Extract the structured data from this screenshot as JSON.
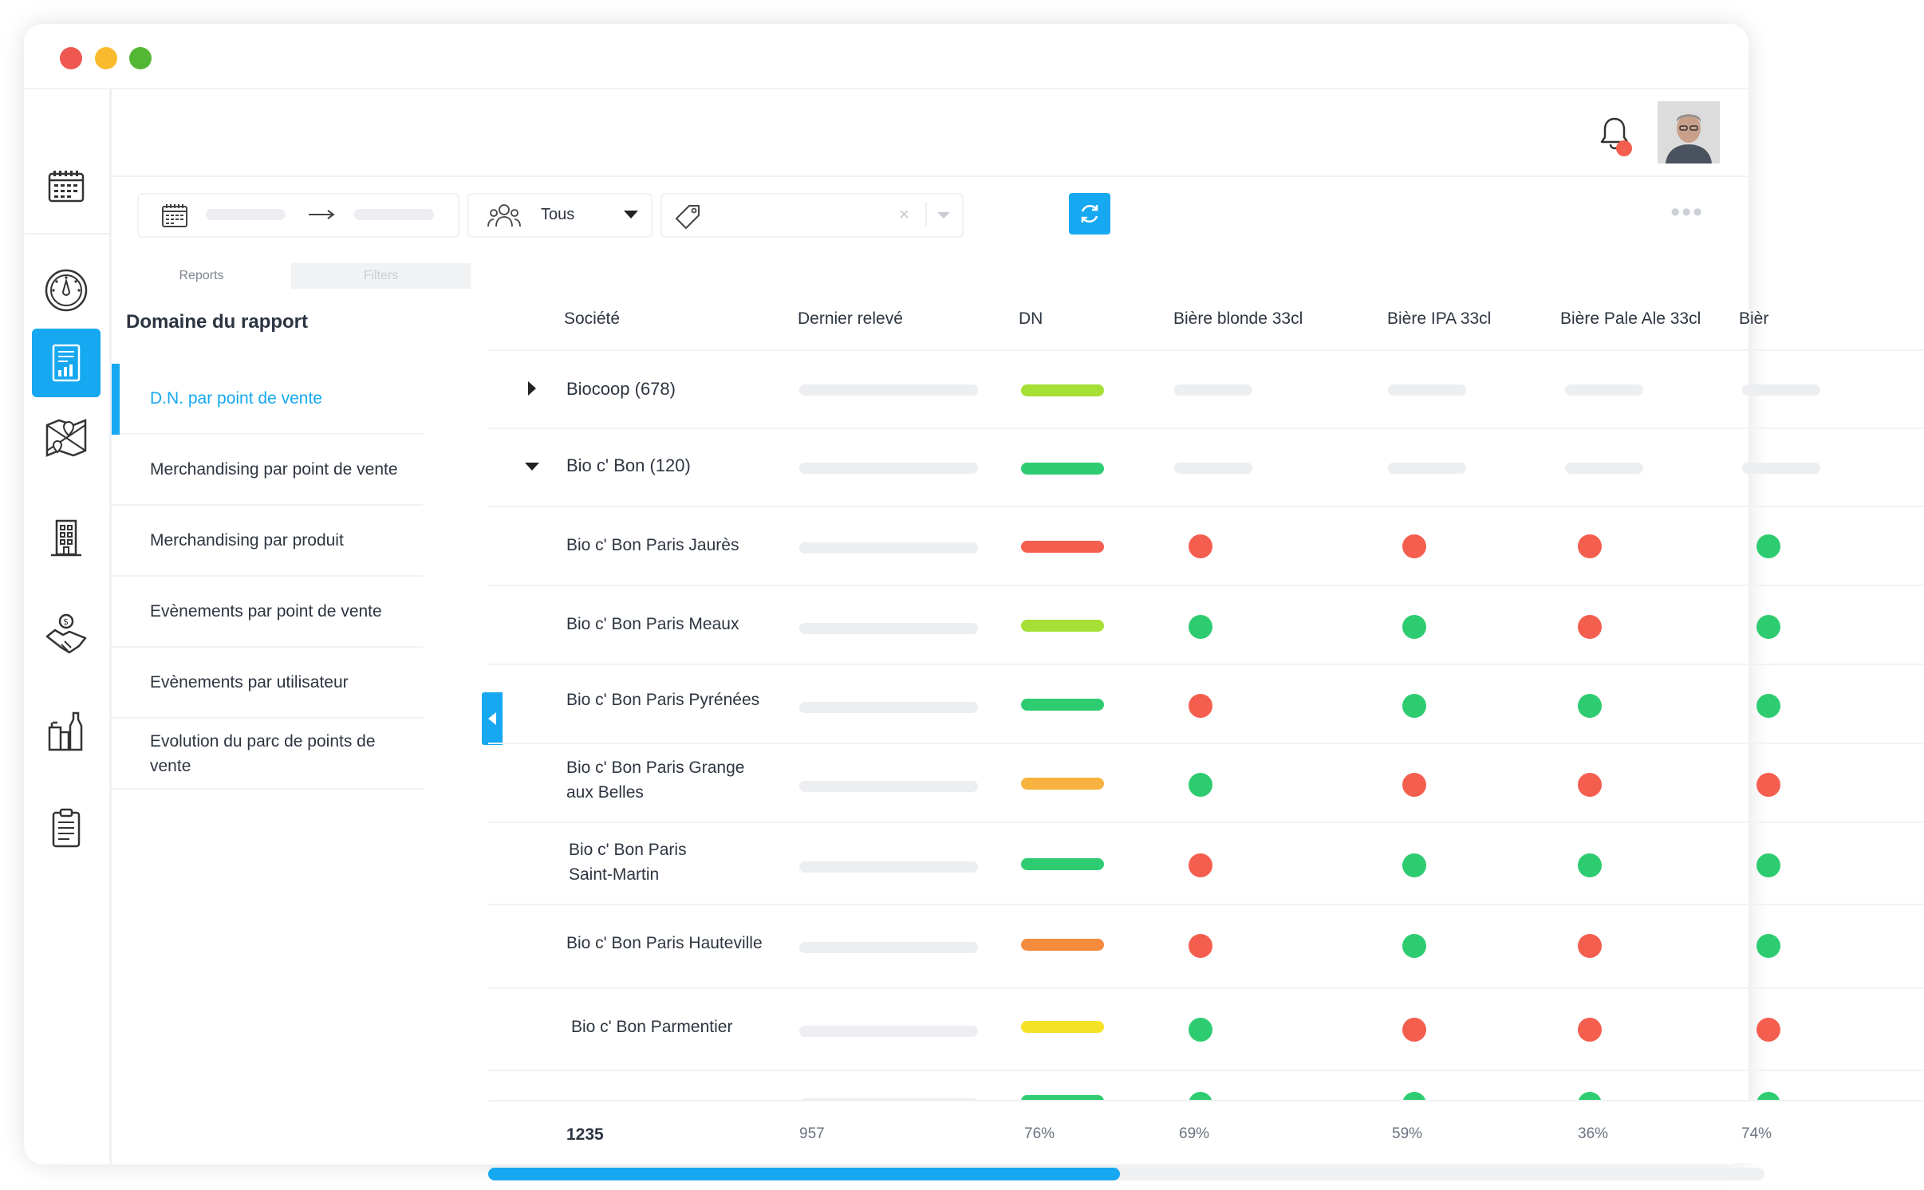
{
  "colors": {
    "accent": "#16a8f0",
    "green": "#2ecc71",
    "red": "#f45e4f",
    "lime": "#a6df35",
    "orange_light": "#f7b23f",
    "orange": "#f58b3c",
    "yellow": "#f4e224"
  },
  "toolbar": {
    "team_select_value": "Tous",
    "calendar_icon": "calendar-icon",
    "team_icon": "team-icon",
    "tag_icon": "tag-icon",
    "refresh_icon": "refresh-icon"
  },
  "panel": {
    "tabs": [
      {
        "label": "Reports"
      },
      {
        "label": "Filters"
      }
    ],
    "title": "Domaine du rapport",
    "items": [
      {
        "label": "D.N. par point de vente"
      },
      {
        "label": "Merchandising par point de vente"
      },
      {
        "label": "Merchandising par produit"
      },
      {
        "label": "Evènements par point de vente"
      },
      {
        "label": "Evènements par utilisateur"
      },
      {
        "label": "Evolution du parc de points de vente"
      }
    ]
  },
  "table": {
    "columns": [
      "Société",
      "Dernier relevé",
      "DN",
      "Bière blonde 33cl",
      "Bière IPA 33cl",
      "Bière Pale Ale 33cl",
      "Bièr"
    ],
    "groups": [
      {
        "name": "Biocoop (678)",
        "expanded": false,
        "dn_color": "lime"
      },
      {
        "name": "Bio c' Bon (120)",
        "expanded": true,
        "dn_color": "green"
      }
    ],
    "rows": [
      {
        "name": "Bio c' Bon Paris Jaurès",
        "dn": "red",
        "statuses": [
          "red",
          "red",
          "red",
          "green"
        ]
      },
      {
        "name": "Bio c' Bon Paris Meaux",
        "dn": "lime",
        "statuses": [
          "green",
          "green",
          "red",
          "green"
        ]
      },
      {
        "name": "Bio c' Bon Paris Pyrénées",
        "dn": "green",
        "statuses": [
          "red",
          "green",
          "green",
          "green"
        ]
      },
      {
        "name": "Bio c' Bon Paris Grange aux Belles",
        "dn": "orange_light",
        "statuses": [
          "green",
          "red",
          "red",
          "red"
        ]
      },
      {
        "name": "Bio c' Bon Paris Saint-Martin",
        "dn": "green",
        "statuses": [
          "red",
          "green",
          "green",
          "green"
        ]
      },
      {
        "name": "Bio c' Bon Paris Hauteville",
        "dn": "orange",
        "statuses": [
          "red",
          "green",
          "red",
          "green"
        ]
      },
      {
        "name": "Bio c' Bon Parmentier",
        "dn": "yellow",
        "statuses": [
          "green",
          "red",
          "red",
          "red"
        ]
      }
    ],
    "footer": {
      "societe": "1235",
      "dernier_releve": "957",
      "dn": "76%",
      "biere_blonde": "69%",
      "biere_ipa": "59%",
      "biere_pale_ale": "36%",
      "biere_next": "74%"
    }
  }
}
